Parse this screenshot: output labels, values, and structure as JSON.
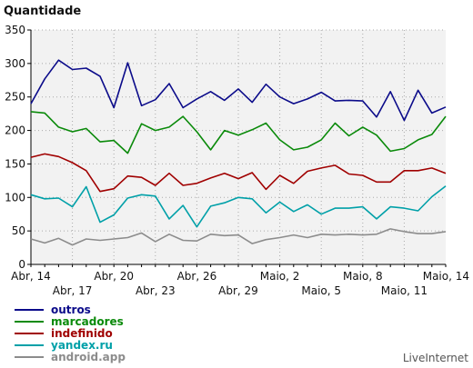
{
  "chart_data": {
    "type": "line",
    "title": "Quantidade",
    "xlabel": "",
    "ylabel": "Quantidade",
    "ylim": [
      0,
      350
    ],
    "yticks": [
      0,
      50,
      100,
      150,
      200,
      250,
      300,
      350
    ],
    "grid": true,
    "legend_position": "bottom-left",
    "x": [
      "Abr, 14",
      "Abr, 15",
      "Abr, 16",
      "Abr, 17",
      "Abr, 18",
      "Abr, 19",
      "Abr, 20",
      "Abr, 21",
      "Abr, 22",
      "Abr, 23",
      "Abr, 24",
      "Abr, 25",
      "Abr, 26",
      "Abr, 27",
      "Abr, 28",
      "Abr, 29",
      "Abr, 30",
      "Maio, 1",
      "Maio, 2",
      "Maio, 3",
      "Maio, 4",
      "Maio, 5",
      "Maio, 6",
      "Maio, 7",
      "Maio, 8",
      "Maio, 9",
      "Maio, 10",
      "Maio, 11",
      "Maio, 12",
      "Maio, 13",
      "Maio, 14"
    ],
    "x_tick_labels": [
      {
        "index": 0,
        "label": "Abr, 14",
        "row": 1
      },
      {
        "index": 3,
        "label": "Abr, 17",
        "row": 2
      },
      {
        "index": 6,
        "label": "Abr, 20",
        "row": 1
      },
      {
        "index": 9,
        "label": "Abr, 23",
        "row": 2
      },
      {
        "index": 12,
        "label": "Abr, 26",
        "row": 1
      },
      {
        "index": 15,
        "label": "Abr, 29",
        "row": 2
      },
      {
        "index": 18,
        "label": "Maio, 2",
        "row": 1
      },
      {
        "index": 21,
        "label": "Maio, 5",
        "row": 2
      },
      {
        "index": 24,
        "label": "Maio, 8",
        "row": 1
      },
      {
        "index": 27,
        "label": "Maio, 11",
        "row": 2
      },
      {
        "index": 30,
        "label": "Maio, 14",
        "row": 1
      }
    ],
    "series": [
      {
        "name": "outros",
        "color": "#0b0b8a",
        "values": [
          240,
          277,
          305,
          291,
          293,
          281,
          234,
          301,
          237,
          246,
          270,
          234,
          247,
          258,
          245,
          262,
          242,
          269,
          250,
          240,
          247,
          257,
          244,
          245,
          244,
          220,
          258,
          215,
          260,
          226,
          235
        ]
      },
      {
        "name": "marcadores",
        "color": "#0a8a0a",
        "values": [
          228,
          226,
          205,
          198,
          203,
          183,
          185,
          166,
          210,
          200,
          205,
          221,
          198,
          171,
          200,
          193,
          201,
          211,
          186,
          171,
          175,
          186,
          211,
          192,
          205,
          193,
          169,
          173,
          186,
          194,
          221
        ]
      },
      {
        "name": "indefinido",
        "color": "#a00000",
        "values": [
          160,
          165,
          161,
          152,
          140,
          109,
          113,
          132,
          130,
          118,
          136,
          118,
          121,
          129,
          136,
          128,
          137,
          112,
          133,
          121,
          139,
          144,
          148,
          135,
          133,
          123,
          123,
          140,
          140,
          144,
          136
        ]
      },
      {
        "name": "yandex.ru",
        "color": "#00a0a8",
        "values": [
          104,
          98,
          99,
          86,
          116,
          63,
          74,
          99,
          104,
          102,
          68,
          88,
          56,
          87,
          92,
          100,
          98,
          77,
          93,
          79,
          89,
          75,
          84,
          84,
          86,
          68,
          86,
          84,
          80,
          101,
          117
        ]
      },
      {
        "name": "android.app",
        "color": "#8c8c8c",
        "values": [
          38,
          32,
          39,
          29,
          38,
          36,
          38,
          40,
          47,
          34,
          45,
          36,
          35,
          45,
          43,
          44,
          31,
          37,
          40,
          44,
          40,
          45,
          44,
          45,
          44,
          45,
          53,
          49,
          46,
          46,
          49
        ]
      }
    ]
  },
  "credit": "LiveInternet",
  "colors": {
    "plot_background": "#f2f2f2",
    "axis": "#000000",
    "grid": "#aaaaaa"
  }
}
